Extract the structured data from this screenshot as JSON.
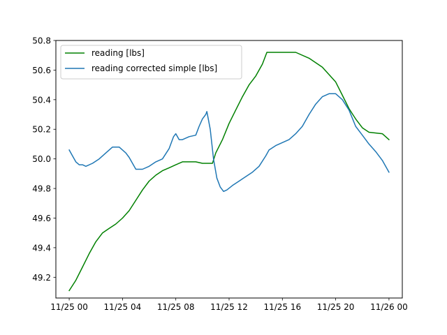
{
  "chart_data": {
    "type": "line",
    "title": "",
    "xlabel": "",
    "ylabel": "",
    "legend_position": "upper-left",
    "grid": false,
    "xlim": [
      "11/24 23:00",
      "11/26 01:00"
    ],
    "ylim": [
      49.06,
      50.8
    ],
    "x_ticks": [
      "11/25 00",
      "11/25 04",
      "11/25 08",
      "11/25 12",
      "11/25 16",
      "11/25 20",
      "11/26 00"
    ],
    "y_ticks": [
      "49.2",
      "49.4",
      "49.6",
      "49.8",
      "50.0",
      "50.2",
      "50.4",
      "50.6",
      "50.8"
    ],
    "series": [
      {
        "name": "reading [lbs]",
        "color": "#008000",
        "points": [
          [
            "11/25 00:00",
            49.11
          ],
          [
            "11/25 00:30",
            49.18
          ],
          [
            "11/25 01:00",
            49.27
          ],
          [
            "11/25 01:30",
            49.36
          ],
          [
            "11/25 02:00",
            49.44
          ],
          [
            "11/25 02:30",
            49.5
          ],
          [
            "11/25 03:00",
            49.53
          ],
          [
            "11/25 03:30",
            49.56
          ],
          [
            "11/25 04:00",
            49.6
          ],
          [
            "11/25 04:30",
            49.65
          ],
          [
            "11/25 05:00",
            49.72
          ],
          [
            "11/25 05:30",
            49.79
          ],
          [
            "11/25 06:00",
            49.85
          ],
          [
            "11/25 06:30",
            49.89
          ],
          [
            "11/25 07:00",
            49.92
          ],
          [
            "11/25 07:30",
            49.94
          ],
          [
            "11/25 08:00",
            49.96
          ],
          [
            "11/25 08:30",
            49.98
          ],
          [
            "11/25 09:00",
            49.98
          ],
          [
            "11/25 09:30",
            49.98
          ],
          [
            "11/25 10:00",
            49.97
          ],
          [
            "11/25 10:30",
            49.97
          ],
          [
            "11/25 10:45",
            49.97
          ],
          [
            "11/25 11:00",
            50.04
          ],
          [
            "11/25 11:30",
            50.13
          ],
          [
            "11/25 12:00",
            50.24
          ],
          [
            "11/25 12:30",
            50.33
          ],
          [
            "11/25 13:00",
            50.42
          ],
          [
            "11/25 13:30",
            50.5
          ],
          [
            "11/25 14:00",
            50.56
          ],
          [
            "11/25 14:30",
            50.64
          ],
          [
            "11/25 14:50",
            50.72
          ],
          [
            "11/25 16:00",
            50.72
          ],
          [
            "11/25 17:00",
            50.72
          ],
          [
            "11/25 18:00",
            50.68
          ],
          [
            "11/25 19:00",
            50.62
          ],
          [
            "11/25 20:00",
            50.52
          ],
          [
            "11/25 20:30",
            50.43
          ],
          [
            "11/25 21:00",
            50.34
          ],
          [
            "11/25 21:30",
            50.27
          ],
          [
            "11/25 22:00",
            50.21
          ],
          [
            "11/25 22:30",
            50.18
          ],
          [
            "11/25 23:30",
            50.17
          ],
          [
            "11/26 00:00",
            50.13
          ]
        ]
      },
      {
        "name": "reading corrected simple [lbs]",
        "color": "#1f77b4",
        "points": [
          [
            "11/25 00:00",
            50.06
          ],
          [
            "11/25 00:15",
            50.02
          ],
          [
            "11/25 00:30",
            49.98
          ],
          [
            "11/25 00:45",
            49.96
          ],
          [
            "11/25 01:00",
            49.96
          ],
          [
            "11/25 01:15",
            49.95
          ],
          [
            "11/25 01:45",
            49.97
          ],
          [
            "11/25 02:15",
            50.0
          ],
          [
            "11/25 02:45",
            50.04
          ],
          [
            "11/25 03:00",
            50.06
          ],
          [
            "11/25 03:15",
            50.08
          ],
          [
            "11/25 03:45",
            50.08
          ],
          [
            "11/25 04:00",
            50.06
          ],
          [
            "11/25 04:15",
            50.04
          ],
          [
            "11/25 04:30",
            50.01
          ],
          [
            "11/25 04:45",
            49.97
          ],
          [
            "11/25 05:00",
            49.93
          ],
          [
            "11/25 05:30",
            49.93
          ],
          [
            "11/25 06:00",
            49.95
          ],
          [
            "11/25 06:30",
            49.98
          ],
          [
            "11/25 07:00",
            50.0
          ],
          [
            "11/25 07:30",
            50.07
          ],
          [
            "11/25 07:50",
            50.15
          ],
          [
            "11/25 08:00",
            50.17
          ],
          [
            "11/25 08:15",
            50.13
          ],
          [
            "11/25 08:30",
            50.13
          ],
          [
            "11/25 09:00",
            50.15
          ],
          [
            "11/25 09:30",
            50.16
          ],
          [
            "11/25 09:45",
            50.22
          ],
          [
            "11/25 10:00",
            50.27
          ],
          [
            "11/25 10:15",
            50.3
          ],
          [
            "11/25 10:20",
            50.32
          ],
          [
            "11/25 10:35",
            50.2
          ],
          [
            "11/25 10:50",
            50.0
          ],
          [
            "11/25 11:05",
            49.87
          ],
          [
            "11/25 11:20",
            49.81
          ],
          [
            "11/25 11:35",
            49.78
          ],
          [
            "11/25 11:50",
            49.79
          ],
          [
            "11/25 12:15",
            49.82
          ],
          [
            "11/25 12:45",
            49.85
          ],
          [
            "11/25 13:15",
            49.88
          ],
          [
            "11/25 13:45",
            49.91
          ],
          [
            "11/25 14:15",
            49.95
          ],
          [
            "11/25 14:45",
            50.02
          ],
          [
            "11/25 15:00",
            50.06
          ],
          [
            "11/25 15:30",
            50.09
          ],
          [
            "11/25 16:30",
            50.13
          ],
          [
            "11/25 17:00",
            50.17
          ],
          [
            "11/25 17:30",
            50.22
          ],
          [
            "11/25 18:00",
            50.3
          ],
          [
            "11/25 18:30",
            50.37
          ],
          [
            "11/25 19:00",
            50.42
          ],
          [
            "11/25 19:30",
            50.44
          ],
          [
            "11/25 20:00",
            50.44
          ],
          [
            "11/25 20:30",
            50.4
          ],
          [
            "11/25 21:00",
            50.33
          ],
          [
            "11/25 21:30",
            50.22
          ],
          [
            "11/25 22:00",
            50.16
          ],
          [
            "11/25 22:30",
            50.1
          ],
          [
            "11/25 23:00",
            50.05
          ],
          [
            "11/25 23:30",
            49.99
          ],
          [
            "11/26 00:00",
            49.91
          ]
        ]
      }
    ]
  }
}
